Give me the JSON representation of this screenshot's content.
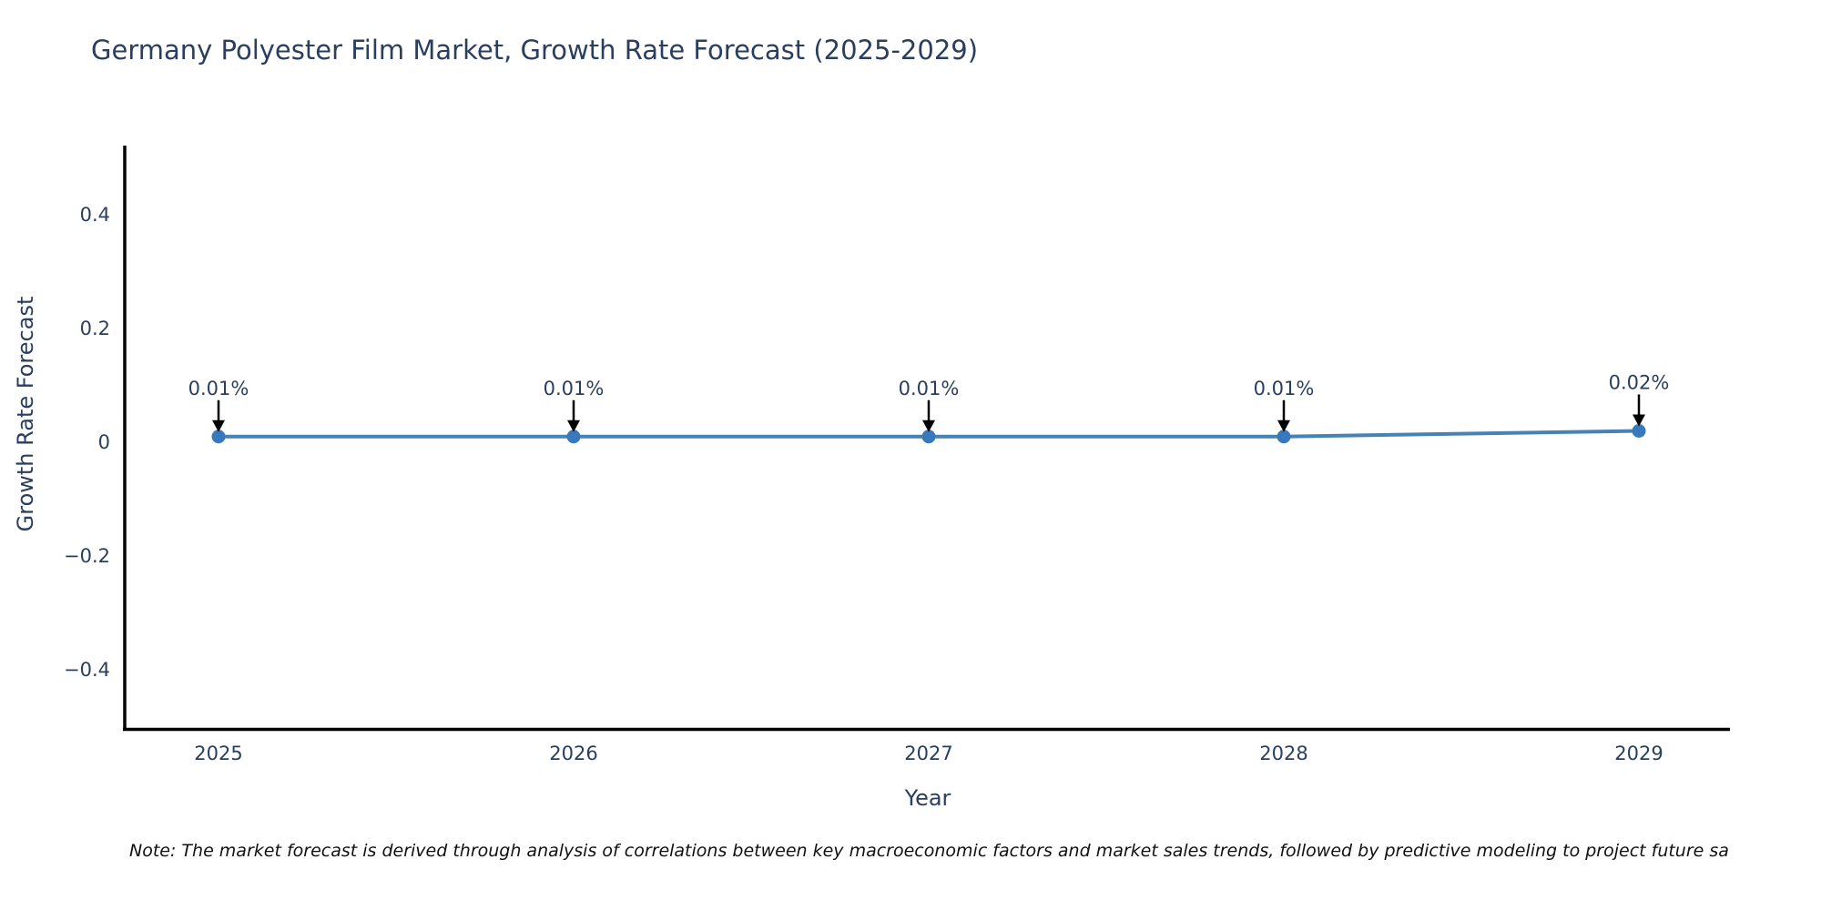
{
  "chart_data": {
    "type": "line",
    "title": "Germany Polyester Film Market, Growth Rate Forecast (2025-2029)",
    "xlabel": "Year",
    "ylabel": "Growth Rate Forecast",
    "x": [
      2025,
      2026,
      2027,
      2028,
      2029
    ],
    "y": [
      0.01,
      0.01,
      0.01,
      0.01,
      0.02
    ],
    "series": [
      {
        "name": "Growth Rate Forecast",
        "values": [
          0.01,
          0.01,
          0.01,
          0.01,
          0.02
        ]
      }
    ],
    "point_annotations": [
      "0.01%",
      "0.01%",
      "0.01%",
      "0.01%",
      "0.02%"
    ],
    "xtick_labels": [
      "2025",
      "2026",
      "2027",
      "2028",
      "2029"
    ],
    "ytick_values": [
      0.4,
      0.2,
      0,
      -0.2,
      -0.4
    ],
    "ytick_labels": [
      "0.4",
      "0.2",
      "0",
      "−0.2",
      "−0.4"
    ],
    "ylim": [
      -0.5,
      0.52
    ],
    "grid": false,
    "legend_position": "none",
    "line_color": "#4682b4",
    "marker_color": "#3879bd",
    "axis_color": "#000000",
    "tick_label_color": "#2a3f5f",
    "annotation_color": "#2a3f5f",
    "annotation_arrow_color": "#000000"
  },
  "note": {
    "text": "Note: The market forecast is derived through analysis of correlations between key macroeconomic factors and market sales trends, followed by predictive modeling to project future sa"
  }
}
